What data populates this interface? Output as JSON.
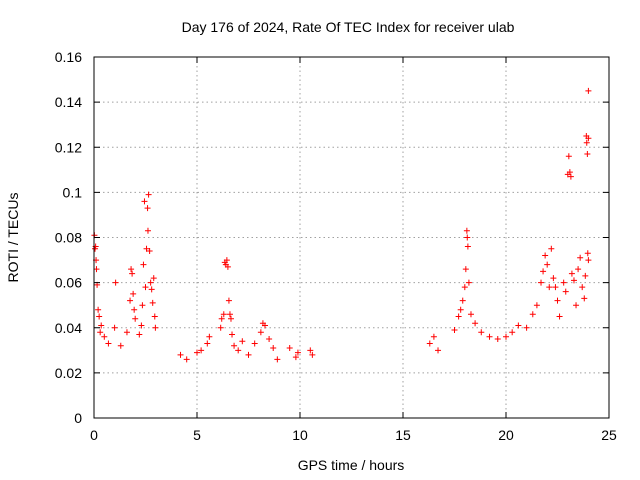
{
  "chart_data": {
    "type": "scatter",
    "title": "Day 176 of 2024, Rate Of TEC Index for receiver ulab",
    "xlabel": "GPS time / hours",
    "ylabel": "ROTI / TECUs",
    "xlim": [
      0,
      25
    ],
    "ylim": [
      0,
      0.16
    ],
    "x_ticks": [
      "0",
      "5",
      "10",
      "15",
      "20",
      "25"
    ],
    "y_ticks": [
      "0",
      "0.02",
      "0.04",
      "0.06",
      "0.08",
      "0.1",
      "0.12",
      "0.14",
      "0.16"
    ],
    "x_tick_values": [
      0,
      5,
      10,
      15,
      20,
      25
    ],
    "y_tick_values": [
      0,
      0.02,
      0.04,
      0.06,
      0.08,
      0.1,
      0.12,
      0.14,
      0.16
    ],
    "grid": true,
    "marker": "+",
    "series_color": "#ff0000",
    "points": [
      [
        0.02,
        0.081
      ],
      [
        0.05,
        0.075
      ],
      [
        0.08,
        0.076
      ],
      [
        0.1,
        0.07
      ],
      [
        0.12,
        0.066
      ],
      [
        0.15,
        0.059
      ],
      [
        0.2,
        0.048
      ],
      [
        0.25,
        0.045
      ],
      [
        0.3,
        0.038
      ],
      [
        0.35,
        0.041
      ],
      [
        0.5,
        0.036
      ],
      [
        0.7,
        0.033
      ],
      [
        1.0,
        0.04
      ],
      [
        1.05,
        0.06
      ],
      [
        1.3,
        0.032
      ],
      [
        1.6,
        0.038
      ],
      [
        1.75,
        0.052
      ],
      [
        1.8,
        0.066
      ],
      [
        1.85,
        0.064
      ],
      [
        1.9,
        0.055
      ],
      [
        1.95,
        0.048
      ],
      [
        2.0,
        0.044
      ],
      [
        2.2,
        0.037
      ],
      [
        2.3,
        0.041
      ],
      [
        2.35,
        0.05
      ],
      [
        2.4,
        0.068
      ],
      [
        2.45,
        0.096
      ],
      [
        2.5,
        0.058
      ],
      [
        2.55,
        0.075
      ],
      [
        2.6,
        0.093
      ],
      [
        2.62,
        0.083
      ],
      [
        2.65,
        0.099
      ],
      [
        2.7,
        0.074
      ],
      [
        2.75,
        0.06
      ],
      [
        2.8,
        0.057
      ],
      [
        2.85,
        0.051
      ],
      [
        2.9,
        0.062
      ],
      [
        2.95,
        0.045
      ],
      [
        2.98,
        0.04
      ],
      [
        4.2,
        0.028
      ],
      [
        4.5,
        0.026
      ],
      [
        5.0,
        0.029
      ],
      [
        5.2,
        0.03
      ],
      [
        5.5,
        0.033
      ],
      [
        5.6,
        0.036
      ],
      [
        6.15,
        0.04
      ],
      [
        6.2,
        0.044
      ],
      [
        6.3,
        0.046
      ],
      [
        6.35,
        0.069
      ],
      [
        6.4,
        0.068
      ],
      [
        6.45,
        0.07
      ],
      [
        6.5,
        0.067
      ],
      [
        6.55,
        0.052
      ],
      [
        6.6,
        0.046
      ],
      [
        6.65,
        0.044
      ],
      [
        6.7,
        0.037
      ],
      [
        6.8,
        0.032
      ],
      [
        7.0,
        0.03
      ],
      [
        7.2,
        0.034
      ],
      [
        7.5,
        0.028
      ],
      [
        7.8,
        0.033
      ],
      [
        8.1,
        0.038
      ],
      [
        8.2,
        0.042
      ],
      [
        8.3,
        0.041
      ],
      [
        8.5,
        0.035
      ],
      [
        8.7,
        0.031
      ],
      [
        8.9,
        0.026
      ],
      [
        9.5,
        0.031
      ],
      [
        9.8,
        0.027
      ],
      [
        9.9,
        0.029
      ],
      [
        10.5,
        0.03
      ],
      [
        10.6,
        0.028
      ],
      [
        16.3,
        0.033
      ],
      [
        16.5,
        0.036
      ],
      [
        16.7,
        0.03
      ],
      [
        17.5,
        0.039
      ],
      [
        17.7,
        0.045
      ],
      [
        17.8,
        0.048
      ],
      [
        17.9,
        0.052
      ],
      [
        18.0,
        0.058
      ],
      [
        18.05,
        0.066
      ],
      [
        18.1,
        0.083
      ],
      [
        18.12,
        0.08
      ],
      [
        18.15,
        0.076
      ],
      [
        18.2,
        0.06
      ],
      [
        18.3,
        0.046
      ],
      [
        18.5,
        0.042
      ],
      [
        18.8,
        0.038
      ],
      [
        19.2,
        0.036
      ],
      [
        19.6,
        0.035
      ],
      [
        20.0,
        0.036
      ],
      [
        20.3,
        0.038
      ],
      [
        20.6,
        0.041
      ],
      [
        21.0,
        0.04
      ],
      [
        21.3,
        0.046
      ],
      [
        21.5,
        0.05
      ],
      [
        21.7,
        0.06
      ],
      [
        21.8,
        0.065
      ],
      [
        21.9,
        0.072
      ],
      [
        22.0,
        0.068
      ],
      [
        22.1,
        0.058
      ],
      [
        22.2,
        0.075
      ],
      [
        22.3,
        0.062
      ],
      [
        22.4,
        0.058
      ],
      [
        22.5,
        0.052
      ],
      [
        22.6,
        0.045
      ],
      [
        22.8,
        0.06
      ],
      [
        22.9,
        0.056
      ],
      [
        23.0,
        0.108
      ],
      [
        23.05,
        0.116
      ],
      [
        23.1,
        0.109
      ],
      [
        23.15,
        0.107
      ],
      [
        23.2,
        0.064
      ],
      [
        23.3,
        0.061
      ],
      [
        23.4,
        0.05
      ],
      [
        23.5,
        0.066
      ],
      [
        23.6,
        0.071
      ],
      [
        23.7,
        0.058
      ],
      [
        23.8,
        0.053
      ],
      [
        23.85,
        0.063
      ],
      [
        23.9,
        0.125
      ],
      [
        23.92,
        0.122
      ],
      [
        23.95,
        0.117
      ],
      [
        23.97,
        0.073
      ],
      [
        24.0,
        0.145
      ],
      [
        24.0,
        0.124
      ],
      [
        24.0,
        0.07
      ]
    ]
  }
}
